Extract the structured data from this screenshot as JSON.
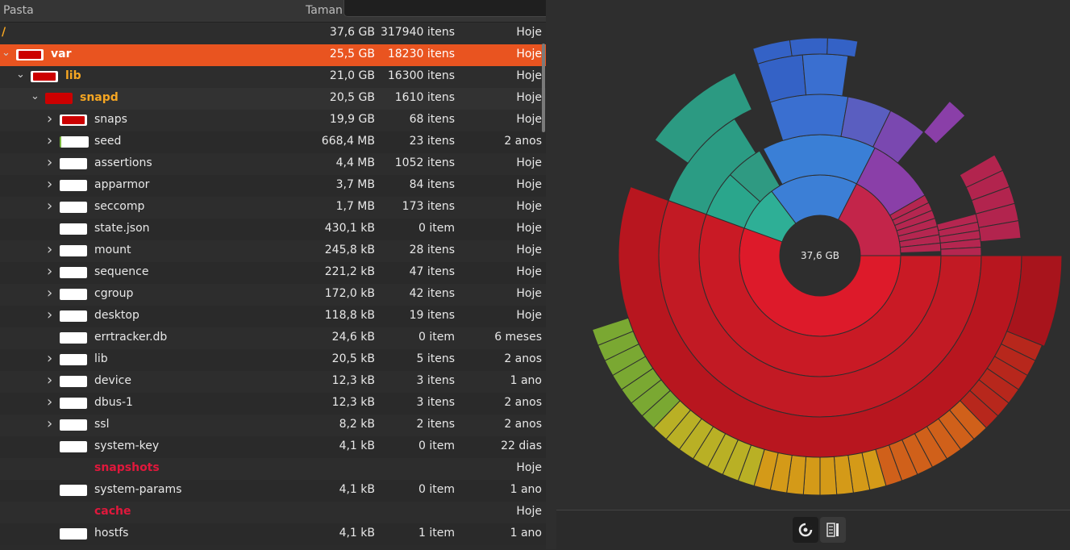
{
  "header": {
    "col_folder": "Pasta",
    "col_size": "Taman"
  },
  "rows": [
    {
      "name": "/",
      "size": "37,6 GB",
      "items": "317940 itens",
      "date": "Hoje",
      "depth": 0,
      "chevron": "",
      "icon": "none",
      "style": "orange"
    },
    {
      "name": "var",
      "size": "25,5 GB",
      "items": "18230 itens",
      "date": "Hoje",
      "depth": 0,
      "chevron": "expanded",
      "icon": "red",
      "style": "highlight"
    },
    {
      "name": "lib",
      "size": "21,0 GB",
      "items": "16300 itens",
      "date": "Hoje",
      "depth": 1,
      "chevron": "expanded",
      "icon": "red",
      "style": "orange"
    },
    {
      "name": "snapd",
      "size": "20,5 GB",
      "items": "1610 itens",
      "date": "Hoje",
      "depth": 2,
      "chevron": "expanded",
      "icon": "redfull",
      "style": "orange-sel"
    },
    {
      "name": "snaps",
      "size": "19,9 GB",
      "items": "68 itens",
      "date": "Hoje",
      "depth": 3,
      "chevron": "collapsed",
      "icon": "red",
      "style": ""
    },
    {
      "name": "seed",
      "size": "668,4 MB",
      "items": "23 itens",
      "date": "2 anos",
      "depth": 3,
      "chevron": "collapsed",
      "icon": "greenedge",
      "style": ""
    },
    {
      "name": "assertions",
      "size": "4,4 MB",
      "items": "1052 itens",
      "date": "Hoje",
      "depth": 3,
      "chevron": "collapsed",
      "icon": "white",
      "style": ""
    },
    {
      "name": "apparmor",
      "size": "3,7 MB",
      "items": "84 itens",
      "date": "Hoje",
      "depth": 3,
      "chevron": "collapsed",
      "icon": "white",
      "style": ""
    },
    {
      "name": "seccomp",
      "size": "1,7 MB",
      "items": "173 itens",
      "date": "Hoje",
      "depth": 3,
      "chevron": "collapsed",
      "icon": "white",
      "style": ""
    },
    {
      "name": "state.json",
      "size": "430,1 kB",
      "items": "0 item",
      "date": "Hoje",
      "depth": 3,
      "chevron": "",
      "icon": "white",
      "style": ""
    },
    {
      "name": "mount",
      "size": "245,8 kB",
      "items": "28 itens",
      "date": "Hoje",
      "depth": 3,
      "chevron": "collapsed",
      "icon": "white",
      "style": ""
    },
    {
      "name": "sequence",
      "size": "221,2 kB",
      "items": "47 itens",
      "date": "Hoje",
      "depth": 3,
      "chevron": "collapsed",
      "icon": "white",
      "style": ""
    },
    {
      "name": "cgroup",
      "size": "172,0 kB",
      "items": "42 itens",
      "date": "Hoje",
      "depth": 3,
      "chevron": "collapsed",
      "icon": "white",
      "style": ""
    },
    {
      "name": "desktop",
      "size": "118,8 kB",
      "items": "19 itens",
      "date": "Hoje",
      "depth": 3,
      "chevron": "collapsed",
      "icon": "white",
      "style": ""
    },
    {
      "name": "errtracker.db",
      "size": "24,6 kB",
      "items": "0 item",
      "date": "6 meses",
      "depth": 3,
      "chevron": "",
      "icon": "white",
      "style": ""
    },
    {
      "name": "lib",
      "size": "20,5 kB",
      "items": "5 itens",
      "date": "2 anos",
      "depth": 3,
      "chevron": "collapsed",
      "icon": "white",
      "style": ""
    },
    {
      "name": "device",
      "size": "12,3 kB",
      "items": "3 itens",
      "date": "1 ano",
      "depth": 3,
      "chevron": "collapsed",
      "icon": "white",
      "style": ""
    },
    {
      "name": "dbus-1",
      "size": "12,3 kB",
      "items": "3 itens",
      "date": "2 anos",
      "depth": 3,
      "chevron": "collapsed",
      "icon": "white",
      "style": ""
    },
    {
      "name": "ssl",
      "size": "8,2 kB",
      "items": "2 itens",
      "date": "2 anos",
      "depth": 3,
      "chevron": "collapsed",
      "icon": "white",
      "style": ""
    },
    {
      "name": "system-key",
      "size": "4,1 kB",
      "items": "0 item",
      "date": "22 dias",
      "depth": 3,
      "chevron": "",
      "icon": "white",
      "style": ""
    },
    {
      "name": "snapshots",
      "size": "",
      "items": "",
      "date": "Hoje",
      "depth": 3,
      "chevron": "",
      "icon": "none",
      "style": "redname"
    },
    {
      "name": "system-params",
      "size": "4,1 kB",
      "items": "0 item",
      "date": "1 ano",
      "depth": 3,
      "chevron": "",
      "icon": "white",
      "style": ""
    },
    {
      "name": "cache",
      "size": "",
      "items": "",
      "date": "Hoje",
      "depth": 3,
      "chevron": "",
      "icon": "none",
      "style": "redname"
    },
    {
      "name": "hostfs",
      "size": "4,1 kB",
      "items": "1 item",
      "date": "1 ano",
      "depth": 3,
      "chevron": "",
      "icon": "white",
      "style": ""
    }
  ],
  "chart": {
    "center_label": "37,6 GB"
  },
  "bottom_bar": {
    "ring_view_icon": "ring-chart-icon",
    "treemap_view_icon": "treemap-icon"
  }
}
